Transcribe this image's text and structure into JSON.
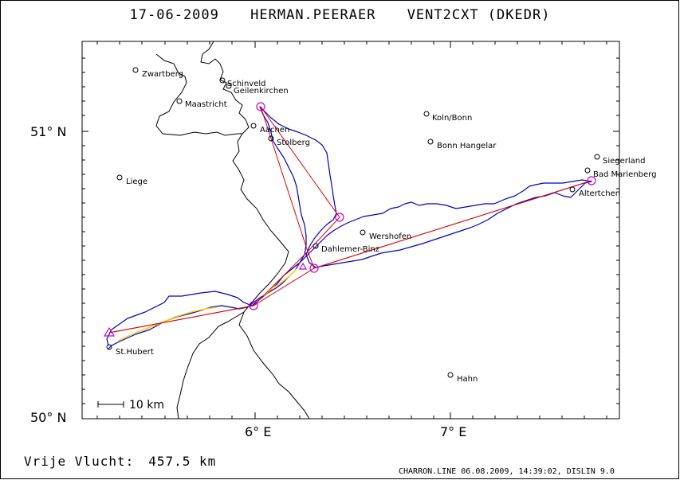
{
  "header": {
    "date": "17-06-2009",
    "pilot": "HERMAN.PEERAER",
    "glider": "VENT2CXT (DKEDR)"
  },
  "footer": {
    "distance_label": "Vrije Vlucht:",
    "distance_value": "457.5 km",
    "credit": "CHARRON.LINE 06.08.2009, 14:39:02, DISLIN 9.0"
  },
  "axes": {
    "lat_labels": [
      "51° N",
      "50° N"
    ],
    "lon_labels": [
      "6° E",
      "7° E"
    ]
  },
  "scale_bar": {
    "label": "10 km"
  },
  "colors": {
    "track": "#0000cc",
    "track_highlight": "#ffd200",
    "task_lines": "#dd0000",
    "turnpoints": "#cc00cc",
    "borders": "#000000"
  },
  "places": [
    {
      "name": "Zwartberg"
    },
    {
      "name": "Schinveld"
    },
    {
      "name": "Geilenkirchen"
    },
    {
      "name": "Maastricht"
    },
    {
      "name": "Aachen"
    },
    {
      "name": "Stolberg"
    },
    {
      "name": "Koln/Bonn"
    },
    {
      "name": "Bonn Hangelar"
    },
    {
      "name": "Liege"
    },
    {
      "name": "Siegerland"
    },
    {
      "name": "Bad Marienberg"
    },
    {
      "name": "Altertchen"
    },
    {
      "name": "Wershofen"
    },
    {
      "name": "Dahlemer-Binz"
    },
    {
      "name": "St.Hubert"
    },
    {
      "name": "Hahn"
    }
  ]
}
